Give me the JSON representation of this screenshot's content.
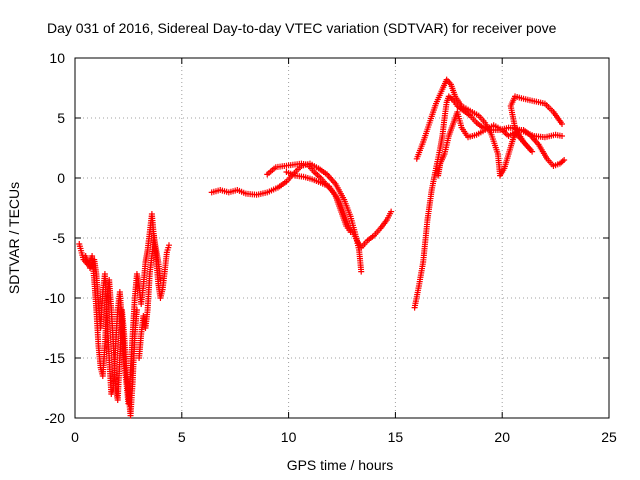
{
  "chart_data": {
    "type": "scatter",
    "title": "Day 031 of 2016, Sidereal Day-to-day VTEC variation (SDTVAR) for receiver pove",
    "xlabel": "GPS time / hours",
    "ylabel": "SDTVAR / TECUs",
    "xlim": [
      0,
      25
    ],
    "ylim": [
      -20,
      10
    ],
    "xticks": [
      0,
      5,
      10,
      15,
      20,
      25
    ],
    "yticks": [
      -20,
      -15,
      -10,
      -5,
      0,
      5,
      10
    ],
    "grid": true,
    "marker": "+",
    "series": [
      {
        "name": "SDTVAR",
        "color": "#ff0000",
        "tracks": [
          [
            [
              0.2,
              -5.5
            ],
            [
              0.4,
              -6.8
            ],
            [
              0.6,
              -7.2
            ],
            [
              0.8,
              -6.5
            ],
            [
              0.9,
              -8.5
            ],
            [
              1.0,
              -11
            ],
            [
              1.1,
              -14
            ],
            [
              1.2,
              -15.8
            ],
            [
              1.3,
              -16.5
            ],
            [
              1.4,
              -14
            ],
            [
              1.5,
              -10
            ],
            [
              1.6,
              -8.5
            ],
            [
              1.7,
              -11
            ],
            [
              1.8,
              -14
            ],
            [
              1.9,
              -17.5
            ],
            [
              2.0,
              -18.5
            ],
            [
              2.1,
              -15
            ],
            [
              2.2,
              -11
            ],
            [
              2.3,
              -13
            ],
            [
              2.4,
              -16
            ],
            [
              2.5,
              -18
            ],
            [
              2.6,
              -19.8
            ],
            [
              2.7,
              -17
            ],
            [
              2.8,
              -13
            ],
            [
              2.9,
              -11
            ]
          ],
          [
            [
              0.5,
              -6.5
            ],
            [
              0.7,
              -7.5
            ],
            [
              0.9,
              -6.8
            ],
            [
              1.0,
              -8
            ],
            [
              1.1,
              -10.5
            ],
            [
              1.2,
              -12.5
            ],
            [
              1.3,
              -9.5
            ],
            [
              1.4,
              -8
            ],
            [
              1.5,
              -11.5
            ],
            [
              1.6,
              -15
            ],
            [
              1.7,
              -18
            ],
            [
              1.8,
              -17.5
            ],
            [
              1.9,
              -14
            ],
            [
              2.0,
              -11
            ],
            [
              2.1,
              -9.5
            ],
            [
              2.2,
              -12
            ],
            [
              2.3,
              -15.5
            ],
            [
              2.4,
              -17
            ],
            [
              2.5,
              -18.8
            ],
            [
              2.6,
              -16
            ],
            [
              2.7,
              -13
            ],
            [
              2.8,
              -10
            ],
            [
              2.9,
              -8
            ],
            [
              3.0,
              -9
            ],
            [
              3.1,
              -10.5
            ],
            [
              3.2,
              -9
            ],
            [
              3.3,
              -7
            ],
            [
              3.4,
              -6
            ],
            [
              3.5,
              -4.5
            ],
            [
              3.6,
              -3
            ],
            [
              3.7,
              -5
            ],
            [
              3.8,
              -6
            ],
            [
              3.9,
              -7
            ],
            [
              4.0,
              -8.5
            ]
          ],
          [
            [
              3.0,
              -15
            ],
            [
              3.1,
              -13
            ],
            [
              3.2,
              -11.5
            ],
            [
              3.3,
              -12.5
            ],
            [
              3.4,
              -11
            ],
            [
              3.5,
              -8
            ],
            [
              3.6,
              -6.5
            ],
            [
              3.7,
              -4.8
            ],
            [
              3.8,
              -6.8
            ],
            [
              3.9,
              -8.8
            ],
            [
              4.0,
              -10
            ],
            [
              4.1,
              -9.3
            ],
            [
              4.2,
              -7.8
            ],
            [
              4.3,
              -6.2
            ],
            [
              4.4,
              -5.6
            ]
          ],
          [
            [
              6.4,
              -1.2
            ],
            [
              6.8,
              -1.0
            ],
            [
              7.2,
              -1.2
            ],
            [
              7.6,
              -1.0
            ],
            [
              8.0,
              -1.3
            ],
            [
              8.5,
              -1.4
            ],
            [
              9.0,
              -1.2
            ],
            [
              9.5,
              -0.8
            ],
            [
              9.9,
              -0.3
            ],
            [
              10.2,
              0.3
            ],
            [
              10.6,
              1.0
            ],
            [
              11.0,
              1.2
            ],
            [
              11.4,
              0.8
            ],
            [
              11.8,
              0.3
            ],
            [
              12.2,
              -0.5
            ],
            [
              12.6,
              -1.8
            ],
            [
              12.9,
              -3.2
            ],
            [
              13.1,
              -4.5
            ],
            [
              13.3,
              -6.0
            ],
            [
              13.4,
              -7.8
            ]
          ],
          [
            [
              9.0,
              0.3
            ],
            [
              9.4,
              0.9
            ],
            [
              9.8,
              1.0
            ],
            [
              10.2,
              1.1
            ],
            [
              10.6,
              1.2
            ],
            [
              10.9,
              1.1
            ],
            [
              11.2,
              0.5
            ],
            [
              11.5,
              0.0
            ],
            [
              11.8,
              -0.6
            ],
            [
              12.1,
              -1.2
            ],
            [
              12.4,
              -2.0
            ],
            [
              12.6,
              -3.0
            ],
            [
              12.8,
              -4.0
            ],
            [
              13.0,
              -4.5
            ],
            [
              13.2,
              -5.2
            ],
            [
              13.4,
              -5.8
            ],
            [
              13.7,
              -5.2
            ],
            [
              14.0,
              -4.8
            ],
            [
              14.3,
              -4.2
            ],
            [
              14.6,
              -3.5
            ],
            [
              14.8,
              -2.8
            ]
          ],
          [
            [
              9.9,
              0.5
            ],
            [
              10.3,
              0.2
            ],
            [
              10.7,
              0.1
            ],
            [
              11.1,
              -0.1
            ],
            [
              11.5,
              -0.4
            ],
            [
              11.9,
              -0.7
            ],
            [
              12.2,
              -1.5
            ],
            [
              12.5,
              -3.0
            ],
            [
              12.7,
              -4.0
            ],
            [
              12.9,
              -4.5
            ]
          ],
          [
            [
              15.9,
              -10.8
            ],
            [
              16.1,
              -9
            ],
            [
              16.3,
              -7
            ],
            [
              16.5,
              -3.5
            ],
            [
              16.7,
              -1.0
            ],
            [
              16.9,
              0.8
            ],
            [
              17.1,
              2.5
            ],
            [
              17.2,
              3.5
            ],
            [
              17.3,
              5.0
            ],
            [
              17.4,
              6.3
            ],
            [
              17.5,
              6.8
            ],
            [
              17.7,
              6.5
            ],
            [
              17.9,
              6.0
            ],
            [
              18.2,
              5.6
            ],
            [
              18.5,
              5.2
            ],
            [
              18.8,
              4.6
            ],
            [
              19.1,
              4.2
            ],
            [
              19.5,
              4.0
            ],
            [
              19.9,
              4.0
            ],
            [
              20.3,
              4.2
            ],
            [
              20.7,
              4.1
            ],
            [
              21.1,
              3.8
            ],
            [
              21.5,
              3.5
            ],
            [
              22.0,
              3.4
            ],
            [
              22.5,
              3.6
            ],
            [
              22.8,
              3.5
            ]
          ],
          [
            [
              16.0,
              1.6
            ],
            [
              16.3,
              3.0
            ],
            [
              16.6,
              4.6
            ],
            [
              16.9,
              6.2
            ],
            [
              17.2,
              7.4
            ],
            [
              17.4,
              8.2
            ],
            [
              17.6,
              7.8
            ],
            [
              17.8,
              6.8
            ],
            [
              18.1,
              6.0
            ],
            [
              18.5,
              5.6
            ],
            [
              18.9,
              5.2
            ],
            [
              19.2,
              4.6
            ],
            [
              19.5,
              3.6
            ],
            [
              19.8,
              2.0
            ],
            [
              19.9,
              0.2
            ],
            [
              20.1,
              0.8
            ],
            [
              20.3,
              2.0
            ],
            [
              20.5,
              3.2
            ],
            [
              20.7,
              4.0
            ],
            [
              21.0,
              4.0
            ],
            [
              21.3,
              3.6
            ],
            [
              21.7,
              2.8
            ],
            [
              22.1,
              1.6
            ],
            [
              22.4,
              1.0
            ],
            [
              22.7,
              1.2
            ],
            [
              22.9,
              1.5
            ]
          ],
          [
            [
              17.0,
              0.2
            ],
            [
              17.1,
              1.2
            ],
            [
              17.3,
              2.0
            ],
            [
              17.5,
              3.5
            ],
            [
              17.7,
              4.5
            ],
            [
              17.9,
              5.5
            ],
            [
              18.1,
              4.2
            ],
            [
              18.4,
              3.4
            ],
            [
              18.8,
              3.6
            ],
            [
              19.2,
              4.0
            ],
            [
              19.6,
              4.4
            ],
            [
              20.0,
              4.0
            ],
            [
              20.3,
              3.5
            ],
            [
              20.6,
              3.8
            ],
            [
              20.9,
              3.2
            ],
            [
              21.2,
              2.6
            ],
            [
              21.4,
              2.2
            ],
            [
              21.0,
              3.0
            ],
            [
              20.6,
              4.2
            ],
            [
              20.4,
              6.0
            ],
            [
              20.6,
              6.8
            ],
            [
              21.0,
              6.6
            ],
            [
              21.5,
              6.4
            ],
            [
              22.0,
              6.2
            ],
            [
              22.4,
              5.5
            ],
            [
              22.8,
              4.5
            ]
          ]
        ]
      }
    ]
  }
}
